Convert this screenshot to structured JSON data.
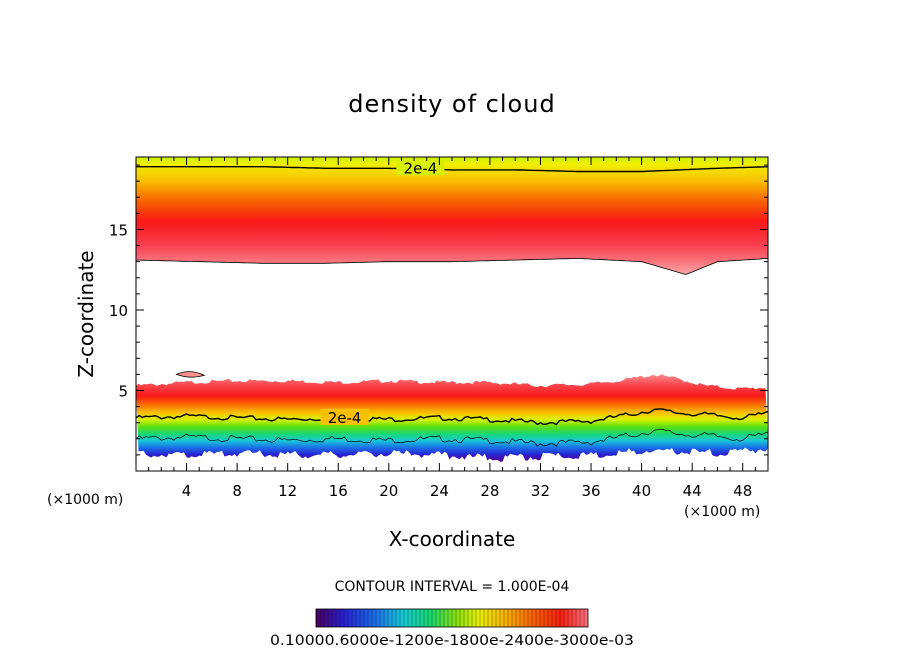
{
  "chart_data": {
    "type": "contour",
    "title": "density of cloud",
    "xlabel": "X-coordinate",
    "ylabel": "Z-coordinate",
    "x_unit": "(×1000 m)",
    "y_unit": "(×1000 m)",
    "x_ticks": [
      4,
      8,
      12,
      16,
      20,
      24,
      28,
      32,
      36,
      40,
      44,
      48
    ],
    "y_ticks": [
      5,
      10,
      15
    ],
    "xlim": [
      0,
      50
    ],
    "ylim": [
      0,
      19.5
    ],
    "contour_labels": [
      "2e-4",
      "2e-4"
    ],
    "contour_interval_text": "CONTOUR INTERVAL = 1.000E-04",
    "colorbar_labels": "0.10000e-05 0.60000e-04 0.12000e-03 0.18000e-03 0.24000e-03 0.30000e-03",
    "colorbar_labels_rendered": "0.10000.6000e-1200e-1800e-2400e-3000e-03",
    "upper_layer": {
      "z_top": 19.5,
      "contour_2e4_z": [
        18.9,
        18.9,
        18.9,
        18.8,
        18.8,
        18.7,
        18.7,
        18.6,
        18.6,
        18.7,
        18.8,
        18.9
      ],
      "contour_x": [
        0,
        5,
        10,
        15,
        20,
        25,
        30,
        35,
        40,
        43,
        46,
        50
      ],
      "peak_z": 15.0,
      "bottom_z": [
        13.1,
        13.0,
        12.9,
        12.9,
        13.0,
        13.0,
        13.1,
        13.2,
        13.0,
        12.2,
        13.0,
        13.2
      ],
      "bottom_x": [
        0,
        5,
        10,
        15,
        20,
        25,
        30,
        35,
        40,
        43.5,
        46,
        50
      ]
    },
    "lower_layer": {
      "top_x": [
        0,
        4,
        8,
        12,
        16,
        20,
        24,
        28,
        32,
        36,
        39,
        41,
        43,
        45,
        48,
        50
      ],
      "top_z": [
        5.3,
        5.5,
        5.6,
        5.6,
        5.5,
        5.6,
        5.5,
        5.5,
        5.3,
        5.4,
        5.7,
        6.0,
        5.7,
        5.3,
        5.1,
        5.2
      ],
      "contour_2e4_z": [
        3.3,
        3.4,
        3.3,
        3.2,
        3.3,
        3.2,
        3.3,
        3.2,
        3.0,
        3.1,
        3.5,
        3.8,
        3.6,
        3.5,
        3.3,
        3.6
      ],
      "bottom_z": [
        1.0,
        1.0,
        1.1,
        1.0,
        1.0,
        1.1,
        1.0,
        0.8,
        0.9,
        1.0,
        1.2,
        1.3,
        1.2,
        1.1,
        1.2,
        1.4
      ],
      "patch": {
        "x": [
          3.2,
          5.4
        ],
        "z": [
          6.0,
          6.1
        ]
      }
    },
    "colormap": [
      "#5a0090",
      "#2a1fd0",
      "#1a70e8",
      "#18c8d8",
      "#18d870",
      "#6ce010",
      "#c8f000",
      "#f8f000",
      "#f8b000",
      "#f86000",
      "#f82010",
      "#f86070",
      "#f8a0a0"
    ]
  }
}
